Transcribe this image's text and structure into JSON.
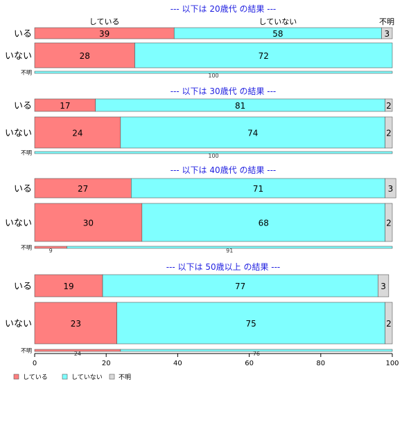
{
  "chart_data": {
    "type": "bar",
    "orientation": "horizontal",
    "stacked": "percent",
    "xlim": [
      0,
      100
    ],
    "xticks": [
      "0",
      "20",
      "40",
      "60",
      "80",
      "100"
    ],
    "legend_position": "bottom-left",
    "series": [
      {
        "name": "している",
        "color": "#ff7f7f"
      },
      {
        "name": "していない",
        "color": "#7fffff"
      },
      {
        "name": "不明",
        "color": "#d9d9d9"
      }
    ],
    "column_headers": [
      "している",
      "していない",
      "不明"
    ],
    "panels": [
      {
        "title": "--- 以下は 20歳代 の結果 ---",
        "rows": [
          {
            "label": "いる",
            "values": [
              39,
              58,
              3
            ]
          },
          {
            "label": "いない",
            "values": [
              28,
              72,
              0
            ]
          },
          {
            "label": "不明",
            "values": [
              0,
              100,
              0
            ]
          }
        ]
      },
      {
        "title": "--- 以下は 30歳代 の結果 ---",
        "rows": [
          {
            "label": "いる",
            "values": [
              17,
              81,
              2
            ]
          },
          {
            "label": "いない",
            "values": [
              24,
              74,
              2
            ]
          },
          {
            "label": "不明",
            "values": [
              0,
              100,
              0
            ]
          }
        ]
      },
      {
        "title": "--- 以下は 40歳代 の結果 ---",
        "rows": [
          {
            "label": "いる",
            "values": [
              27,
              71,
              3
            ]
          },
          {
            "label": "いない",
            "values": [
              30,
              68,
              2
            ]
          },
          {
            "label": "不明",
            "values": [
              9,
              91,
              0
            ]
          }
        ]
      },
      {
        "title": "--- 以下は 50歳以上 の結果 ---",
        "rows": [
          {
            "label": "いる",
            "values": [
              19,
              77,
              3
            ]
          },
          {
            "label": "いない",
            "values": [
              23,
              75,
              2
            ]
          },
          {
            "label": "不明",
            "values": [
              24,
              76,
              0
            ]
          }
        ]
      }
    ]
  }
}
